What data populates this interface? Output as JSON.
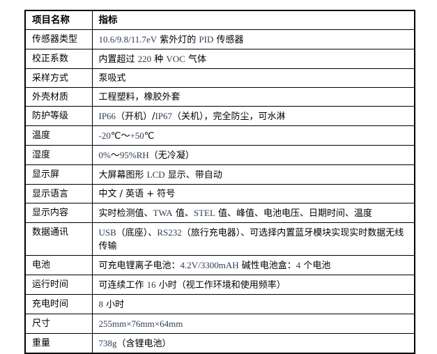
{
  "page": {
    "background_color": "#ffffff",
    "border_color": "#000000",
    "text_color": "#000000",
    "latin_text_color": "#2e3d52"
  },
  "table": {
    "headers": [
      "项目名称",
      "指标"
    ],
    "rows": [
      {
        "label": "传感器类型",
        "value": "10.6/9.8/11.7eV 紫外灯的 PID 传感器"
      },
      {
        "label": "校正系数",
        "value": "内置超过 220 种 VOC 气体"
      },
      {
        "label": "采样方式",
        "value": "泵吸式"
      },
      {
        "label": "外壳材质",
        "value": "工程塑料，橡胶外套"
      },
      {
        "label": "防护等级",
        "value": "IP66（开机）/IP67（关机），完全防尘，可水淋"
      },
      {
        "label": "温度",
        "value": "-20℃～+50℃"
      },
      {
        "label": "湿度",
        "value": "0%～95%RH（无冷凝）"
      },
      {
        "label": "显示屏",
        "value": "大屏幕图形 LCD 显示、带自动"
      },
      {
        "label": "显示语言",
        "value": "中文 / 英语 + 符号"
      },
      {
        "label": "显示内容",
        "value": "实时检测值、TWA 值、STEL 值、峰值、电池电压、日期时间、温度"
      },
      {
        "label": "数据通讯",
        "value": "USB（底座）、RS232（旅行充电器）、可选择内置蓝牙模块实现实时数据无线传输"
      },
      {
        "label": "电池",
        "value": "可充电锂离子电池：4.2V/3300mAH 碱性电池盒：4 个电池"
      },
      {
        "label": "运行时间",
        "value": "可连续工作 16 小时（视工作环境和使用频率）"
      },
      {
        "label": "充电时间",
        "value": "8 小时"
      },
      {
        "label": "尺寸",
        "value": "255mm×76mm×64mm"
      },
      {
        "label": "重量",
        "value": "738g（含锂电池）"
      }
    ]
  }
}
